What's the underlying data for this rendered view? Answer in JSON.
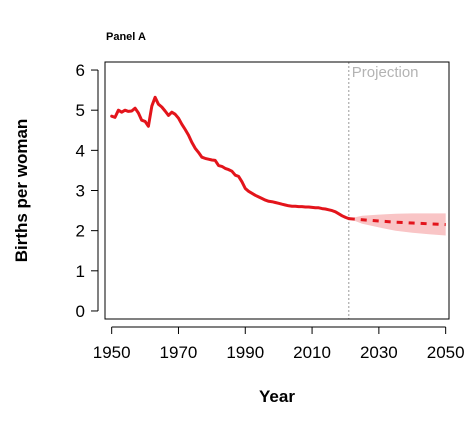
{
  "panel_label": "Panel A",
  "chart_data": {
    "type": "line",
    "xlabel": "Year",
    "ylabel": "Births per woman",
    "xlim": [
      1948,
      2051
    ],
    "ylim": [
      -0.2,
      6.2
    ],
    "x_ticks": [
      1950,
      1970,
      1990,
      2010,
      2030,
      2050
    ],
    "y_ticks": [
      0,
      1,
      2,
      3,
      4,
      5,
      6
    ],
    "projection_start": 2021,
    "projection_label": "Projection",
    "colors": {
      "line": "#e3141b",
      "band": "#f9c5c6",
      "divider": "#9a9a9a",
      "projection_text": "#b3b3b3"
    },
    "series": [
      {
        "style": "solid",
        "x": [
          1950,
          1951,
          1952,
          1953,
          1954,
          1955,
          1956,
          1957,
          1958,
          1959,
          1960,
          1961,
          1962,
          1963,
          1964,
          1965,
          1966,
          1967,
          1968,
          1969,
          1970,
          1971,
          1972,
          1973,
          1974,
          1975,
          1976,
          1977,
          1978,
          1979,
          1980,
          1981,
          1982,
          1983,
          1984,
          1985,
          1986,
          1987,
          1988,
          1989,
          1990,
          1991,
          1992,
          1993,
          1994,
          1995,
          1996,
          1997,
          1998,
          1999,
          2000,
          2001,
          2002,
          2003,
          2004,
          2005,
          2006,
          2007,
          2008,
          2009,
          2010,
          2011,
          2012,
          2013,
          2014,
          2015,
          2016,
          2017,
          2018,
          2019,
          2020,
          2021
        ],
        "values": [
          4.85,
          4.82,
          5.0,
          4.95,
          5.0,
          4.97,
          4.98,
          5.05,
          4.93,
          4.75,
          4.72,
          4.6,
          5.1,
          5.32,
          5.15,
          5.08,
          4.98,
          4.87,
          4.95,
          4.9,
          4.8,
          4.65,
          4.52,
          4.38,
          4.2,
          4.05,
          3.95,
          3.83,
          3.8,
          3.78,
          3.76,
          3.75,
          3.62,
          3.6,
          3.55,
          3.52,
          3.48,
          3.38,
          3.35,
          3.22,
          3.05,
          2.98,
          2.93,
          2.88,
          2.84,
          2.8,
          2.76,
          2.73,
          2.72,
          2.7,
          2.68,
          2.66,
          2.64,
          2.62,
          2.61,
          2.61,
          2.6,
          2.6,
          2.59,
          2.59,
          2.58,
          2.57,
          2.57,
          2.55,
          2.54,
          2.52,
          2.5,
          2.47,
          2.42,
          2.37,
          2.33,
          2.3
        ]
      },
      {
        "style": "dashed",
        "x": [
          2021,
          2025,
          2030,
          2035,
          2040,
          2045,
          2050
        ],
        "values": [
          2.3,
          2.27,
          2.24,
          2.21,
          2.19,
          2.17,
          2.15
        ]
      }
    ],
    "projection_band": {
      "x": [
        2021,
        2025,
        2030,
        2035,
        2040,
        2045,
        2050
      ],
      "lower": [
        2.3,
        2.17,
        2.08,
        2.0,
        1.95,
        1.91,
        1.88
      ],
      "upper": [
        2.3,
        2.37,
        2.4,
        2.42,
        2.43,
        2.43,
        2.43
      ]
    }
  }
}
